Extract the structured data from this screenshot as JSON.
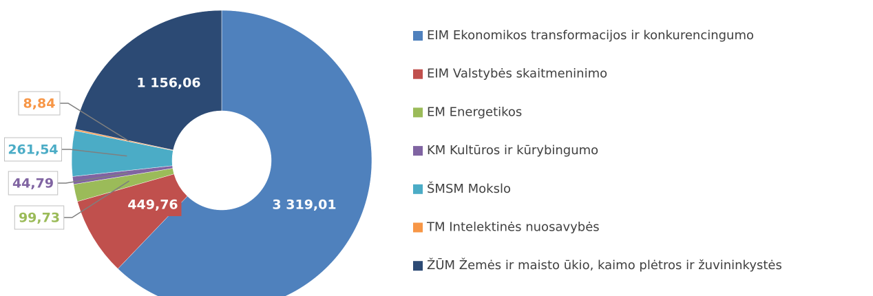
{
  "chart_data": {
    "type": "donut",
    "categories": [
      "EIM Ekonomikos transformacijos ir konkurencingumo",
      "EIM Valstybės skaitmeninimo",
      "EM Energetikos",
      "KM Kultūros ir kūrybingumo",
      "ŠMSM Mokslo",
      "TM Intelektinės nuosavybės",
      "ŽŪM Žemės ir maisto ūkio, kaimo plėtros ir žuvininkystės"
    ],
    "values": [
      3319.01,
      449.76,
      99.73,
      44.79,
      261.54,
      8.84,
      1156.06
    ],
    "value_labels": [
      "3 319,01",
      "449,76",
      "99,73",
      "44,79",
      "261,54",
      "8,84",
      "1 156,06"
    ],
    "colors": [
      "#4f81bd",
      "#c0504d",
      "#9bbb59",
      "#8064a2",
      "#4bacc6",
      "#f79646",
      "#2c4a74"
    ],
    "legend": "right"
  }
}
